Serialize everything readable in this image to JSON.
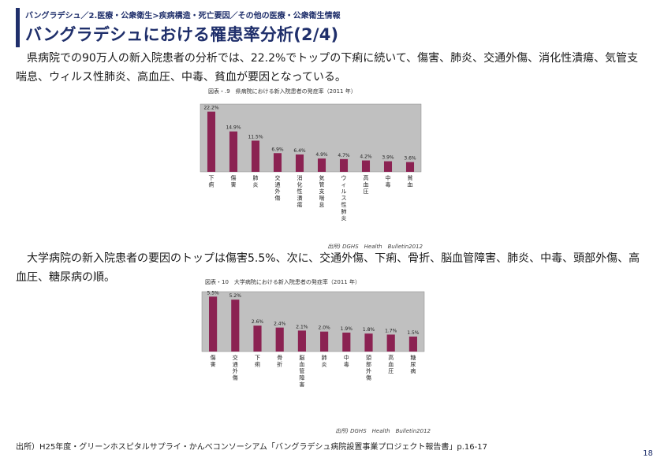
{
  "breadcrumb": "バングラデシュ／2.医療・公衆衛生>疾病構造・死亡要因／その他の医療・公衆衛生情報",
  "title": "バングラデシュにおける罹患率分析(2/4)",
  "paragraph1": "県病院での90万人の新入院患者の分析では、22.2%でトップの下痢に続いて、傷害、肺炎、交通外傷、消化性潰瘍、気管支喘息、ウィルス性肺炎、高血圧、中毒、貧血が要因となっている。",
  "paragraph2": "大学病院の新入院患者の要因のトップは傷害5.5%、次に、交通外傷、下痢、骨折、脳血管障害、肺炎、中毒、頭部外傷、高血圧、糖尿病の順。",
  "footer_source": "出所）H25年度・グリーンホスピタルサプライ・かんべコンソーシアム「バングラデシュ病院設置事業プロジェクト報告書」p.16-17",
  "page_number": "18",
  "colors": {
    "bar": "#8b2252",
    "plot_bg": "#c0c0c0",
    "accent": "#1f2f6b"
  },
  "chart_data": [
    {
      "type": "bar",
      "title": "図表・.9　県病院における新入院患者の発症率（2011 年）",
      "source": "出所) DGHS　Health　Bulletin2012",
      "categories": [
        "下痢",
        "傷害",
        "肺炎",
        "交通外傷",
        "消化性潰瘍",
        "気管支喘息",
        "ウィルス性肺炎",
        "高血圧",
        "中毒",
        "貧血"
      ],
      "values": [
        22.2,
        14.9,
        11.5,
        6.9,
        6.4,
        4.9,
        4.7,
        4.2,
        3.9,
        3.6
      ],
      "value_labels": [
        "22.2%",
        "14.9%",
        "11.5%",
        "6.9%",
        "6.4%",
        "4.9%",
        "4.7%",
        "4.2%",
        "3.9%",
        "3.6%"
      ],
      "ylim": [
        0,
        25
      ],
      "grid": false
    },
    {
      "type": "bar",
      "title": "図表・10　大学病院における新入院患者の発症率（2011 年）",
      "source": "出所) DGHS　Health　Bulletin2012",
      "categories": [
        "傷害",
        "交通外傷",
        "下痢",
        "骨折",
        "脳血管障害",
        "肺炎",
        "中毒",
        "頭部外傷",
        "高血圧",
        "糖尿病"
      ],
      "values": [
        5.5,
        5.2,
        2.6,
        2.4,
        2.1,
        2.0,
        1.9,
        1.8,
        1.7,
        1.5
      ],
      "value_labels": [
        "5.5%",
        "5.2%",
        "2.6%",
        "2.4%",
        "2.1%",
        "2.0%",
        "1.9%",
        "1.8%",
        "1.7%",
        "1.5%"
      ],
      "ylim": [
        0,
        6
      ],
      "grid": false
    }
  ]
}
